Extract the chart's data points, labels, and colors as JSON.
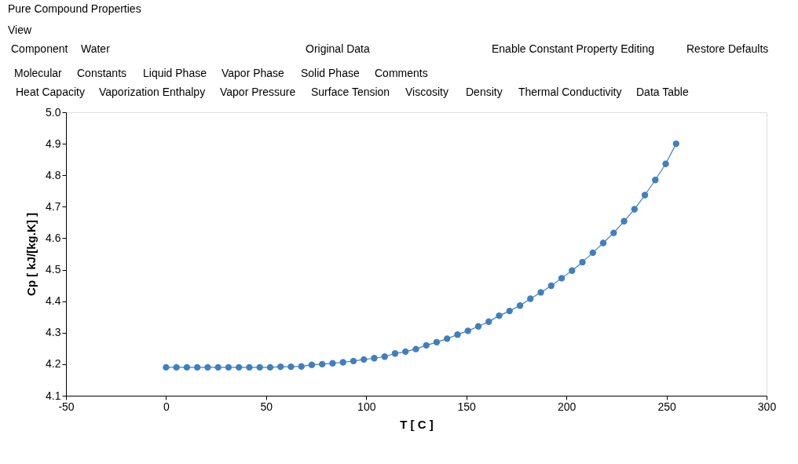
{
  "chart_data": {
    "type": "line",
    "title": "Pure Compound Properties",
    "annotations": [
      "View",
      "Component",
      "Water",
      "Original Data",
      "Enable Constant Property Editing",
      "Restore Defaults",
      "Molecular",
      "Constants",
      "Liquid Phase",
      "Vapor Phase",
      "Solid Phase",
      "Comments",
      "Heat Capacity",
      "Vaporization Enthalpy",
      "Vapor Pressure",
      "Surface Tension",
      "Viscosity",
      "Density",
      "Thermal Conductivity",
      "Data Table"
    ],
    "xlabel": "T [ C ]",
    "ylabel": "Cp [ kJ/[kg.K] ]",
    "x": [
      0,
      5.2,
      10.4,
      15.6,
      20.8,
      26,
      31.2,
      36.4,
      41.6,
      46.8,
      52,
      57.2,
      62.4,
      67.6,
      72.8,
      78,
      83.2,
      88.4,
      93.6,
      98.8,
      104,
      109.2,
      114.4,
      119.6,
      124.8,
      130,
      135.2,
      140.4,
      145.6,
      150.8,
      156,
      161.2,
      166.4,
      171.6,
      176.8,
      182,
      187.2,
      192.4,
      197.6,
      202.8,
      208,
      213.2,
      218.4,
      223.6,
      228.8,
      234,
      239.2,
      244.4,
      249.6,
      254.8
    ],
    "series": [
      {
        "color": "#3f7fbf",
        "values": [
          4.19,
          4.19,
          4.19,
          4.19,
          4.19,
          4.19,
          4.19,
          4.19,
          4.19,
          4.19,
          4.19,
          4.192,
          4.192,
          4.193,
          4.198,
          4.2,
          4.203,
          4.206,
          4.21,
          4.215,
          4.219,
          4.224,
          4.234,
          4.24,
          4.248,
          4.26,
          4.27,
          4.281,
          4.294,
          4.306,
          4.32,
          4.335,
          4.354,
          4.369,
          4.386,
          4.408,
          4.428,
          4.449,
          4.473,
          4.497,
          4.524,
          4.554,
          4.585,
          4.617,
          4.654,
          4.692,
          4.737,
          4.785,
          4.836,
          4.9
        ]
      }
    ],
    "xlim": [
      -50,
      300
    ],
    "xticks": [
      -50,
      0,
      50,
      100,
      150,
      200,
      250,
      300
    ],
    "ylim": [
      4.1,
      5.0
    ],
    "yticks": [
      4.1,
      4.2,
      4.3,
      4.4,
      4.5,
      4.6,
      4.7,
      4.8,
      4.9,
      {
        "value": 5.0,
        "label": "5.0"
      }
    ],
    "grid": false,
    "marker": "circle",
    "line_style": "solid"
  }
}
